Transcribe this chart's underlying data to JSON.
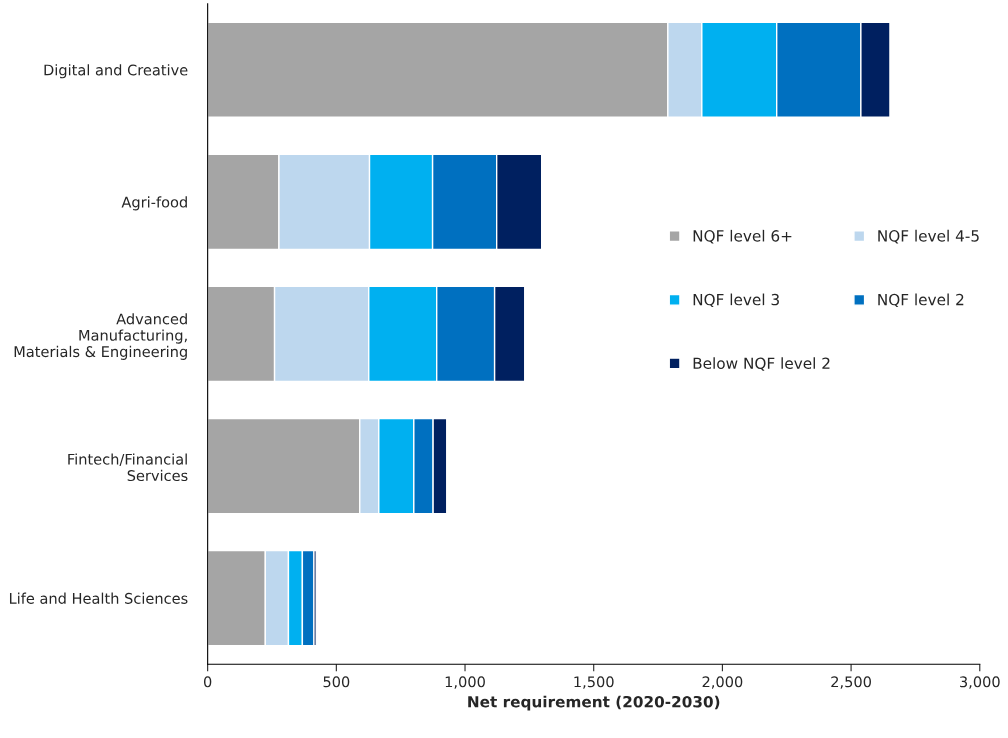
{
  "chart_data": {
    "type": "bar",
    "orientation": "horizontal",
    "stacked": true,
    "xlabel": "Net requirement (2020-2030)",
    "categories": [
      "Digital and Creative",
      "Agri-food",
      "Advanced\nManufacturing,\nMaterials & Engineering",
      "Fintech/Financial\nServices",
      "Life and Health Sciences"
    ],
    "series": [
      {
        "name": "NQF level 6+",
        "color": "#a5a5a5",
        "values": [
          1788,
          277,
          260,
          591,
          224
        ]
      },
      {
        "name": "NQF level 4-5",
        "color": "#bdd7ee",
        "values": [
          132,
          352,
          366,
          74,
          90
        ]
      },
      {
        "name": "NQF level 3",
        "color": "#00b0f0",
        "values": [
          291,
          245,
          264,
          136,
          54
        ]
      },
      {
        "name": "NQF level 2",
        "color": "#0070c0",
        "values": [
          327,
          249,
          225,
          75,
          45
        ]
      },
      {
        "name": "Below NQF level 2",
        "color": "#002060",
        "values": [
          113,
          175,
          117,
          53,
          9
        ]
      }
    ],
    "xlim": [
      0,
      3000
    ],
    "xticks": [
      {
        "value": 0,
        "label": "0"
      },
      {
        "value": 500,
        "label": "500"
      },
      {
        "value": 1000,
        "label": "1,000"
      },
      {
        "value": 1500,
        "label": "1,500"
      },
      {
        "value": 2000,
        "label": "2,000"
      },
      {
        "value": 2500,
        "label": "2,500"
      },
      {
        "value": 3000,
        "label": "3,000"
      }
    ],
    "grid": false,
    "legend": "right"
  }
}
